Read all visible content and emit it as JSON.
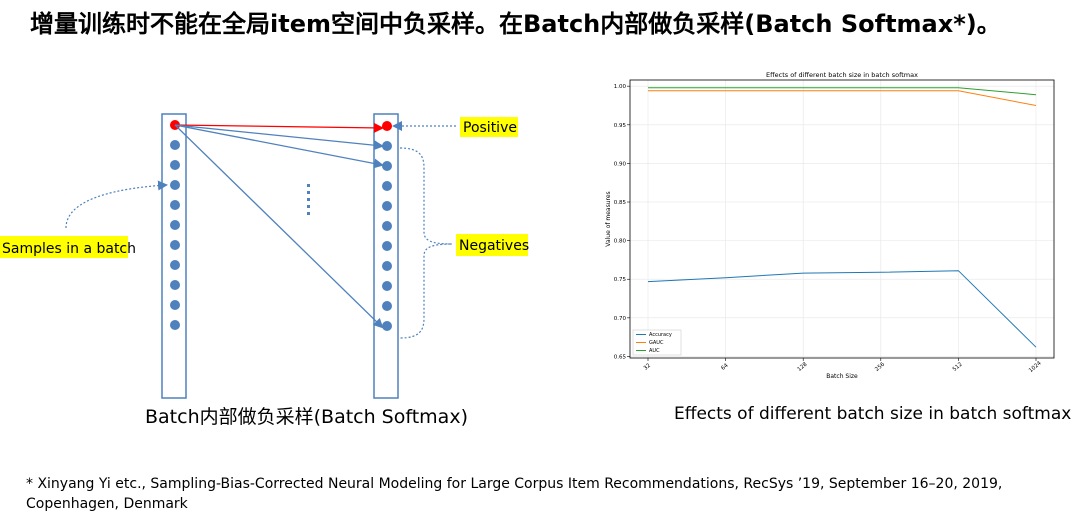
{
  "title": "增量训练时不能在全局item空间中负采样。在Batch内部做负采样(Batch Softmax*)。",
  "diagram": {
    "samples_label": "Samples in a batch",
    "positive_label": "Positive",
    "negatives_label": "Negatives",
    "caption": "Batch内部做负采样(Batch Softmax)"
  },
  "chart_caption": "Effects of different batch size in batch softmax",
  "footnote": "* Xinyang Yi etc., Sampling-Bias-Corrected Neural Modeling for Large Corpus Item Recommendations, RecSys ’19, September 16–20, 2019, Copenhagen, Denmark",
  "colors": {
    "dot_blue": "#4f81bd",
    "dot_red": "#ff0000",
    "highlight": "#ffff00",
    "accuracy": "#1f77b4",
    "gauc": "#ff7f0e",
    "auc": "#2ca02c"
  },
  "chart_data": {
    "type": "line",
    "title": "Effects of different batch size in batch softmax",
    "xlabel": "Batch Size",
    "ylabel": "Value of measures",
    "x": [
      32,
      64,
      128,
      256,
      512,
      1024
    ],
    "series": [
      {
        "name": "Accuracy",
        "values": [
          0.747,
          0.752,
          0.758,
          0.759,
          0.761,
          0.662
        ]
      },
      {
        "name": "GAUC",
        "values": [
          0.994,
          0.994,
          0.994,
          0.994,
          0.994,
          0.975
        ]
      },
      {
        "name": "AUC",
        "values": [
          0.998,
          0.998,
          0.998,
          0.998,
          0.998,
          0.989
        ]
      }
    ],
    "xticks": [
      "32",
      "64",
      "128",
      "256",
      "512",
      "1024"
    ],
    "yticks": [
      "0.65",
      "0.70",
      "0.75",
      "0.80",
      "0.85",
      "0.90",
      "0.95",
      "1.00"
    ],
    "ytick_values": [
      0.65,
      0.7,
      0.75,
      0.8,
      0.85,
      0.9,
      0.95,
      1.0
    ],
    "ylim": [
      0.648,
      1.008
    ],
    "grid": true,
    "legend": "bottom-left"
  }
}
